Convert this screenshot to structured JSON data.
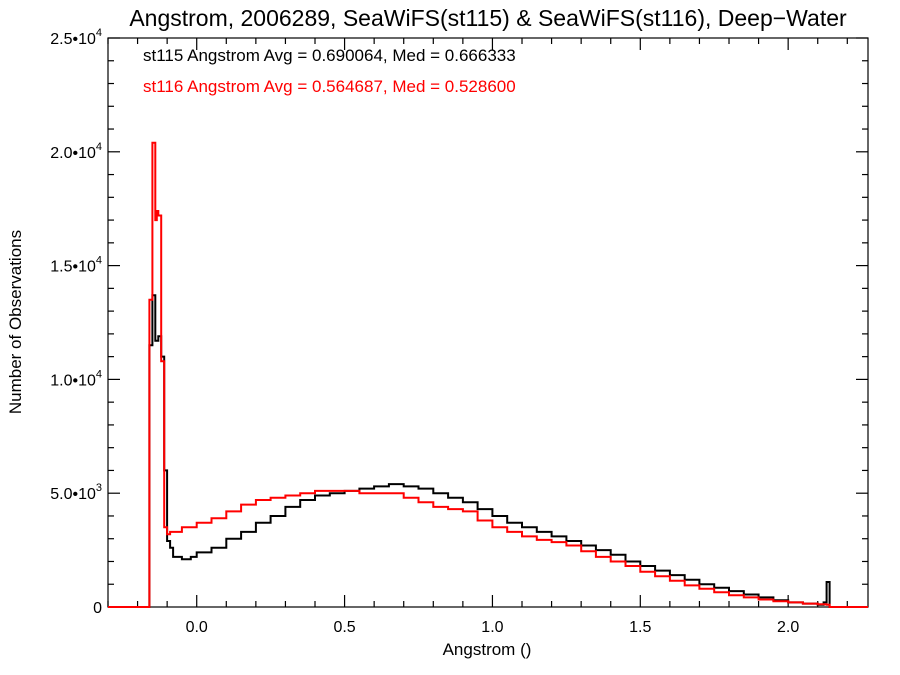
{
  "chart_data": {
    "type": "line",
    "step": true,
    "title": "Angstrom, 2006289, SeaWiFS(st115) & SeaWiFS(st116), Deep−Water",
    "xlabel": "Angstrom ()",
    "ylabel": "Number of Observations",
    "xlim": [
      -0.3,
      2.27
    ],
    "ylim": [
      0,
      25000
    ],
    "x_ticks": [
      {
        "value": 0.0,
        "label": "0.0"
      },
      {
        "value": 0.5,
        "label": "0.5"
      },
      {
        "value": 1.0,
        "label": "1.0"
      },
      {
        "value": 1.5,
        "label": "1.5"
      },
      {
        "value": 2.0,
        "label": "2.0"
      }
    ],
    "y_ticks": [
      {
        "value": 0,
        "mant": "0",
        "exp": ""
      },
      {
        "value": 5000,
        "mant": "5.0•10",
        "exp": "3"
      },
      {
        "value": 10000,
        "mant": "1.0•10",
        "exp": "4"
      },
      {
        "value": 15000,
        "mant": "1.5•10",
        "exp": "4"
      },
      {
        "value": 20000,
        "mant": "2.0•10",
        "exp": "4"
      },
      {
        "value": 25000,
        "mant": "2.5•10",
        "exp": "4"
      }
    ],
    "annotations": [
      {
        "text": "st115 Angstrom Avg = 0.690064, Med = 0.666333",
        "color": "#000000"
      },
      {
        "text": "st116 Angstrom Avg = 0.564687, Med = 0.528600",
        "color": "#ff0000"
      }
    ],
    "series": [
      {
        "color": "#000000",
        "x": [
          -0.3,
          -0.16,
          -0.15,
          -0.14,
          -0.13,
          -0.12,
          -0.11,
          -0.1,
          -0.09,
          -0.08,
          -0.05,
          -0.02,
          0.0,
          0.05,
          0.1,
          0.15,
          0.2,
          0.25,
          0.3,
          0.35,
          0.4,
          0.45,
          0.5,
          0.55,
          0.6,
          0.65,
          0.7,
          0.75,
          0.8,
          0.85,
          0.9,
          0.95,
          1.0,
          1.05,
          1.1,
          1.15,
          1.2,
          1.25,
          1.3,
          1.35,
          1.4,
          1.45,
          1.5,
          1.55,
          1.6,
          1.65,
          1.7,
          1.75,
          1.8,
          1.85,
          1.9,
          1.95,
          2.0,
          2.05,
          2.1,
          2.12,
          2.13,
          2.14,
          2.27
        ],
        "y": [
          0,
          11500,
          13700,
          11700,
          11900,
          11000,
          6000,
          2900,
          2600,
          2200,
          2100,
          2200,
          2400,
          2600,
          3000,
          3300,
          3700,
          4000,
          4400,
          4700,
          4900,
          5000,
          5100,
          5200,
          5300,
          5400,
          5300,
          5200,
          5000,
          4800,
          4600,
          4300,
          4000,
          3700,
          3500,
          3300,
          3100,
          2900,
          2700,
          2500,
          2300,
          2000,
          1800,
          1600,
          1400,
          1200,
          1000,
          850,
          700,
          550,
          420,
          300,
          200,
          150,
          100,
          200,
          1100,
          0,
          0
        ]
      },
      {
        "color": "#ff0000",
        "x": [
          -0.3,
          -0.16,
          -0.15,
          -0.14,
          -0.135,
          -0.13,
          -0.12,
          -0.11,
          -0.1,
          -0.09,
          -0.05,
          0.0,
          0.05,
          0.1,
          0.15,
          0.2,
          0.25,
          0.3,
          0.35,
          0.4,
          0.45,
          0.5,
          0.55,
          0.6,
          0.65,
          0.7,
          0.75,
          0.8,
          0.85,
          0.9,
          0.95,
          1.0,
          1.05,
          1.1,
          1.15,
          1.2,
          1.25,
          1.3,
          1.35,
          1.4,
          1.45,
          1.5,
          1.55,
          1.6,
          1.65,
          1.7,
          1.75,
          1.8,
          1.85,
          1.9,
          1.95,
          2.0,
          2.05,
          2.1,
          2.13,
          2.14,
          2.27
        ],
        "y": [
          0,
          13500,
          20400,
          17000,
          17400,
          17200,
          10800,
          3500,
          3200,
          3300,
          3500,
          3700,
          3900,
          4200,
          4500,
          4700,
          4800,
          4900,
          5000,
          5100,
          5100,
          5100,
          5000,
          5000,
          5000,
          4800,
          4600,
          4400,
          4300,
          4200,
          3800,
          3500,
          3300,
          3100,
          2950,
          2850,
          2700,
          2450,
          2200,
          2000,
          1800,
          1550,
          1350,
          1150,
          950,
          800,
          650,
          520,
          420,
          330,
          250,
          200,
          150,
          120,
          100,
          0,
          0
        ]
      }
    ]
  }
}
